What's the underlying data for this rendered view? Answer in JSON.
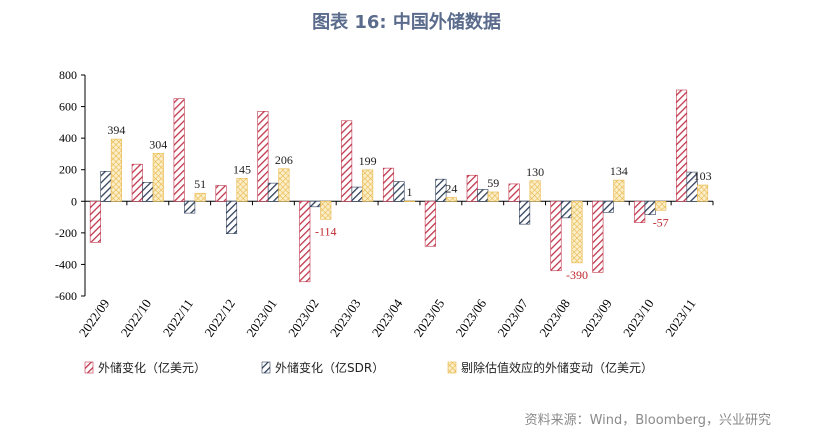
{
  "title": "图表 16: 中国外储数据",
  "source": "资料来源：Wind，Bloomberg，兴业研究",
  "colors": {
    "series1": "#c0364b",
    "series2": "#2f3f5a",
    "series3": "#e8b84a",
    "label_positive": "#222222",
    "label_negative": "#c0272d",
    "title": "#5a6b8c"
  },
  "chart_data": {
    "type": "bar",
    "categories": [
      "2022/09",
      "2022/10",
      "2022/11",
      "2022/12",
      "2023/01",
      "2023/02",
      "2023/03",
      "2023/04",
      "2023/05",
      "2023/06",
      "2023/07",
      "2023/08",
      "2023/09",
      "2023/10",
      "2023/11"
    ],
    "series": [
      {
        "name": "外储变化（亿美元）",
        "pattern": "diagonal-hatch",
        "values": [
          -260,
          235,
          650,
          100,
          570,
          -510,
          510,
          210,
          -285,
          165,
          110,
          -440,
          -450,
          -135,
          705
        ]
      },
      {
        "name": "外储变化（亿SDR）",
        "pattern": "diagonal-hatch",
        "values": [
          190,
          120,
          -75,
          -205,
          115,
          -35,
          90,
          125,
          140,
          75,
          -145,
          -105,
          -70,
          -85,
          185
        ]
      },
      {
        "name": "剔除估值效应的外储变动（亿美元）",
        "pattern": "cross-hatch",
        "values": [
          394,
          304,
          51,
          145,
          206,
          -114,
          199,
          1,
          24,
          59,
          130,
          -390,
          134,
          -57,
          103
        ]
      }
    ],
    "data_labels": [
      {
        "category_index": 0,
        "value": "394"
      },
      {
        "category_index": 1,
        "value": "304"
      },
      {
        "category_index": 2,
        "value": "51"
      },
      {
        "category_index": 3,
        "value": "145"
      },
      {
        "category_index": 4,
        "value": "206"
      },
      {
        "category_index": 5,
        "value": "-114"
      },
      {
        "category_index": 6,
        "value": "199"
      },
      {
        "category_index": 7,
        "value": "1"
      },
      {
        "category_index": 8,
        "value": "24"
      },
      {
        "category_index": 9,
        "value": "59"
      },
      {
        "category_index": 10,
        "value": "130"
      },
      {
        "category_index": 11,
        "value": "-390"
      },
      {
        "category_index": 12,
        "value": "134"
      },
      {
        "category_index": 13,
        "value": "-57"
      },
      {
        "category_index": 14,
        "value": "103"
      }
    ],
    "ylim": [
      -600,
      800
    ],
    "yticks": [
      "800",
      "600",
      "400",
      "200",
      "0",
      "-200",
      "-400",
      "-600"
    ],
    "ytick_values": [
      800,
      600,
      400,
      200,
      0,
      -200,
      -400,
      -600
    ],
    "xlabel": "",
    "ylabel": "",
    "grid": false,
    "legend_position": "bottom"
  }
}
